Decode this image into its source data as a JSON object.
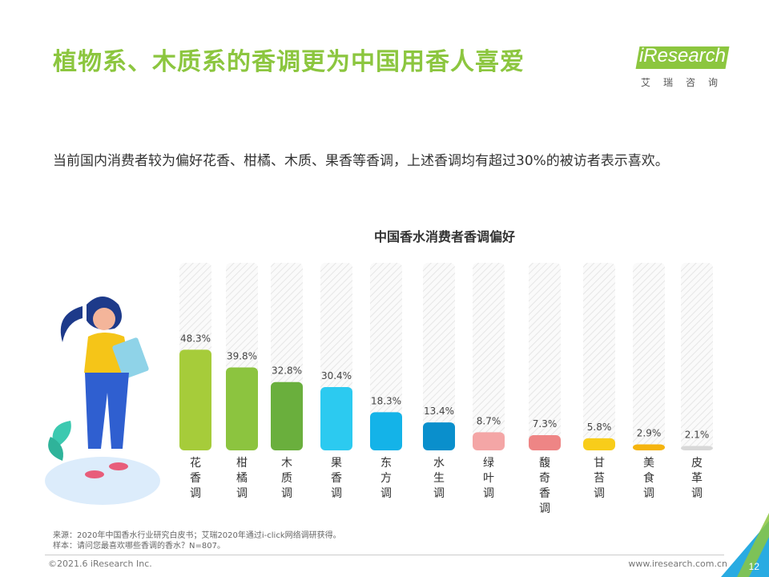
{
  "title": "植物系、木质系的香调更为中国用香人喜爱",
  "logo": {
    "brand": "iResearch",
    "sub": "艾瑞咨询"
  },
  "subtitle": "当前国内消费者较为偏好花香、柑橘、木质、果香等香调，上述香调均有超过30%的被访者表示喜欢。",
  "footnotes": {
    "source": "来源：2020年中国香水行业研究白皮书；艾瑞2020年通过i-click网络调研获得。",
    "sample": "样本：请问您最喜欢哪些香调的香水？N=807。"
  },
  "footer": {
    "copyright": "©2021.6 iResearch Inc.",
    "website": "www.iresearch.com.cn",
    "page": "12"
  },
  "colors": {
    "accent": "#8cc63f",
    "corner_blue": "#29abe2"
  },
  "chart_data": {
    "type": "bar",
    "title": "中国香水消费者香调偏好",
    "categories": [
      "花香调",
      "柑橘调",
      "木质调",
      "果香调",
      "东方调",
      "水生调",
      "绿叶调",
      "馥奇香调",
      "甘苔调",
      "美食调",
      "皮革调"
    ],
    "values": [
      48.3,
      39.8,
      32.8,
      30.4,
      18.3,
      13.4,
      8.7,
      7.3,
      5.8,
      2.9,
      2.1
    ],
    "labels": [
      "48.3%",
      "39.8%",
      "32.8%",
      "30.4%",
      "18.3%",
      "13.4%",
      "8.7%",
      "7.3%",
      "5.8%",
      "2.9%",
      "2.1%"
    ],
    "colors": [
      "#a6cc3a",
      "#8cc43f",
      "#6aaf3d",
      "#2ccaf0",
      "#14b3e8",
      "#0a8fcc",
      "#f4a6a6",
      "#ee8585",
      "#f8cd1a",
      "#f5b40f",
      "#d8d8d8"
    ],
    "ylim": [
      0,
      100
    ],
    "legend": "none",
    "grid": false
  }
}
